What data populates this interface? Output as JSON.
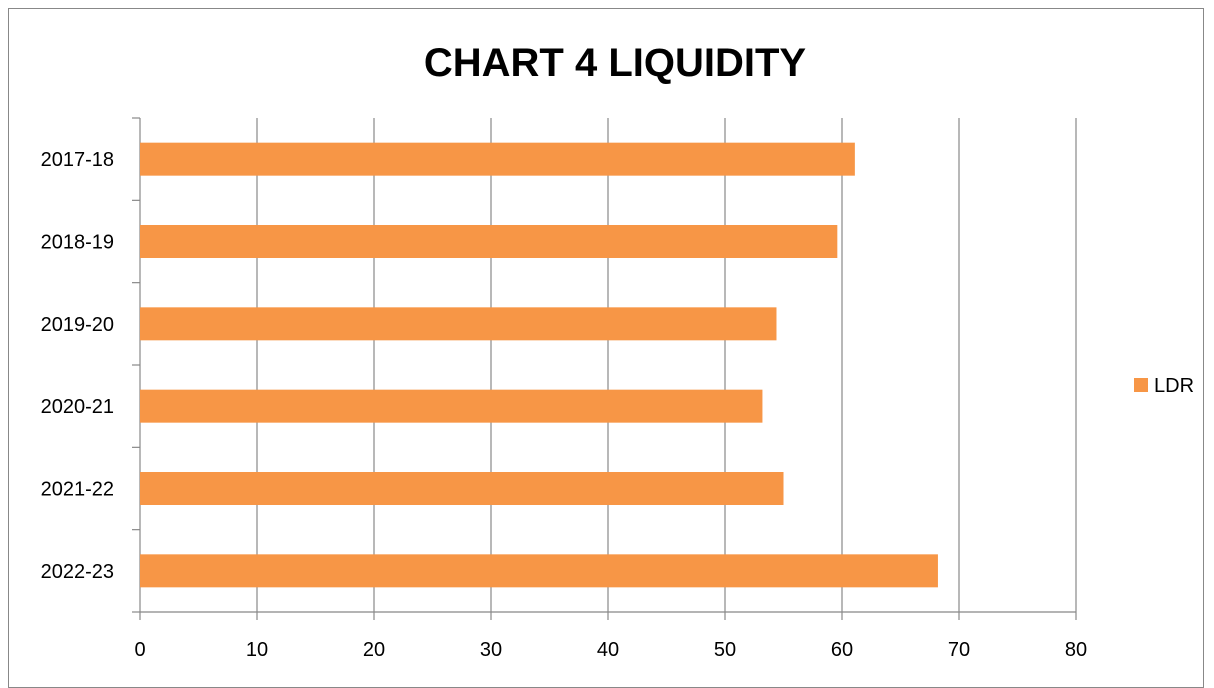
{
  "chart_data": {
    "type": "bar",
    "orientation": "horizontal",
    "title": "CHART 4 LIQUIDITY",
    "xlabel": "",
    "ylabel": "",
    "categories": [
      "2017-18",
      "2018-19",
      "2019-20",
      "2020-21",
      "2021-22",
      "2022-23"
    ],
    "series": [
      {
        "name": "LDR",
        "values": [
          61.1,
          59.6,
          54.4,
          53.2,
          55.0,
          68.2
        ]
      }
    ],
    "xlim": [
      0,
      80
    ],
    "xticks": [
      0,
      10,
      20,
      30,
      40,
      50,
      60,
      70,
      80
    ],
    "grid": "vertical",
    "legend_position": "right",
    "colors": {
      "bar": "#F79646",
      "grid": "#888888",
      "axis": "#888888"
    }
  }
}
